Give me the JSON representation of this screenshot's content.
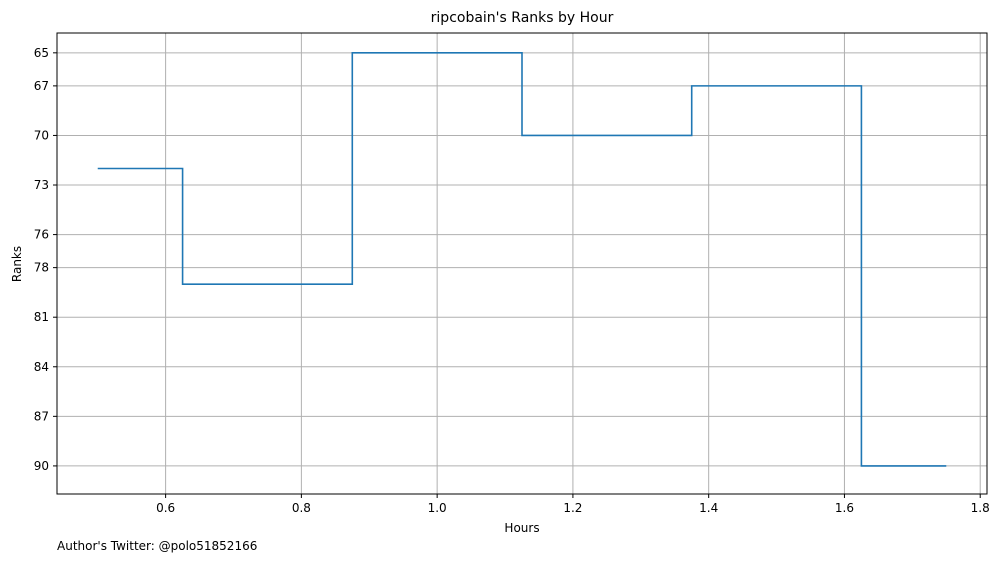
{
  "chart_data": {
    "type": "line",
    "drawstyle": "steps-mid",
    "title": "ripcobain's Ranks by Hour",
    "xlabel": "Hours",
    "ylabel": "Ranks",
    "xlim": [
      0.44,
      1.81
    ],
    "ylim": [
      91.7,
      63.8
    ],
    "y_inverted": true,
    "grid": true,
    "x_ticks": [
      0.6,
      0.8,
      1.0,
      1.2,
      1.4,
      1.6,
      1.8
    ],
    "x_tick_labels": [
      "0.6",
      "0.8",
      "1.0",
      "1.2",
      "1.4",
      "1.6",
      "1.8"
    ],
    "y_ticks": [
      65,
      67,
      70,
      73,
      76,
      78,
      81,
      84,
      87,
      90
    ],
    "y_tick_labels": [
      "65",
      "67",
      "70",
      "73",
      "76",
      "78",
      "81",
      "84",
      "87",
      "90"
    ],
    "series": [
      {
        "color": "#1f77b4",
        "x": [
          0.5,
          0.75,
          1.0,
          1.25,
          1.5,
          1.75
        ],
        "y": [
          72,
          79,
          65,
          70,
          67,
          90
        ]
      }
    ]
  },
  "footnote": "Author's Twitter: @polo51852166"
}
